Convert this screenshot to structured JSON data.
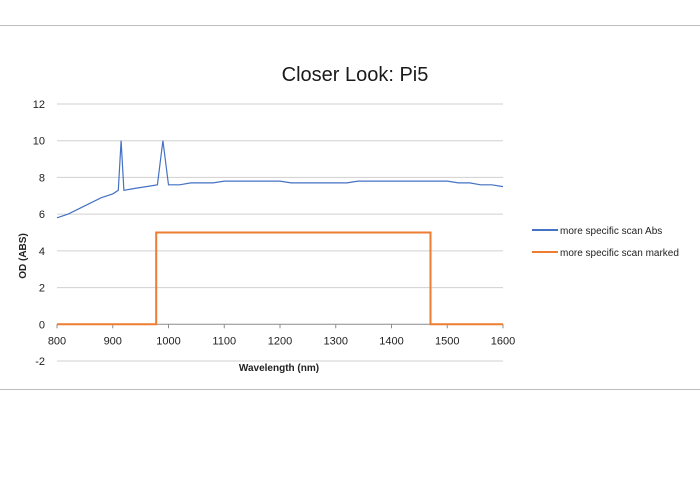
{
  "chart_data": {
    "type": "line",
    "title": "Closer Look: Pi5",
    "xlabel": "Wavelength (nm)",
    "ylabel": "OD (ABS)",
    "xlim": [
      800,
      1600
    ],
    "ylim": [
      -2,
      12
    ],
    "xticks": [
      800,
      900,
      1000,
      1100,
      1200,
      1300,
      1400,
      1500,
      1600
    ],
    "yticks": [
      -2,
      0,
      2,
      4,
      6,
      8,
      10,
      12
    ],
    "grid": "horizontal",
    "legend_position": "right",
    "series": [
      {
        "name": "more specific scan Abs",
        "color": "#4472C4",
        "x": [
          800,
          820,
          840,
          860,
          880,
          900,
          910,
          915,
          920,
          940,
          960,
          980,
          990,
          1000,
          1020,
          1040,
          1060,
          1080,
          1100,
          1120,
          1140,
          1160,
          1180,
          1200,
          1220,
          1240,
          1260,
          1280,
          1300,
          1320,
          1340,
          1360,
          1380,
          1400,
          1420,
          1440,
          1460,
          1480,
          1500,
          1520,
          1540,
          1560,
          1580,
          1600
        ],
        "y": [
          5.8,
          6.0,
          6.3,
          6.6,
          6.9,
          7.1,
          7.3,
          10.0,
          7.3,
          7.4,
          7.5,
          7.6,
          10.0,
          7.6,
          7.6,
          7.7,
          7.7,
          7.7,
          7.8,
          7.8,
          7.8,
          7.8,
          7.8,
          7.8,
          7.7,
          7.7,
          7.7,
          7.7,
          7.7,
          7.7,
          7.8,
          7.8,
          7.8,
          7.8,
          7.8,
          7.8,
          7.8,
          7.8,
          7.8,
          7.7,
          7.7,
          7.6,
          7.6,
          7.5
        ]
      },
      {
        "name": "more specific scan marked",
        "color": "#ED7D31",
        "x": [
          800,
          978,
          978,
          1470,
          1470,
          1600
        ],
        "y": [
          0,
          0,
          5,
          5,
          0,
          0
        ]
      }
    ]
  }
}
